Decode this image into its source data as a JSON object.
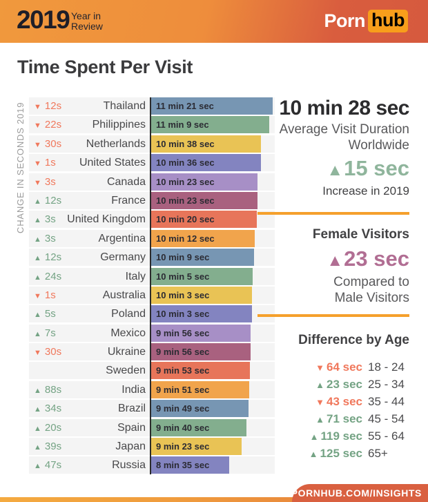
{
  "header": {
    "year": "2019",
    "subtitle_line1": "Year in",
    "subtitle_line2": "Review",
    "logo_left": "Porn",
    "logo_right": "hub"
  },
  "title": "Time Spent Per Visit",
  "chart_data": {
    "type": "bar",
    "orientation": "horizontal",
    "title": "Time Spent Per Visit",
    "axis_label": "CHANGE IN SECONDS 2019",
    "value_unit": "seconds per visit",
    "rows": [
      {
        "country": "Thailand",
        "change_arrow": "▼",
        "change_value": "12s",
        "change_dir": "down",
        "change_seconds": -12,
        "duration_label": "11 min 21 sec",
        "duration_seconds": 681,
        "bar_color": "#7796b3"
      },
      {
        "country": "Philippines",
        "change_arrow": "▼",
        "change_value": "22s",
        "change_dir": "down",
        "change_seconds": -22,
        "duration_label": "11 min 9 sec",
        "duration_seconds": 669,
        "bar_color": "#83ae8e"
      },
      {
        "country": "Netherlands",
        "change_arrow": "▼",
        "change_value": "30s",
        "change_dir": "down",
        "change_seconds": -30,
        "duration_label": "10 min 38 sec",
        "duration_seconds": 638,
        "bar_color": "#e9c355"
      },
      {
        "country": "United States",
        "change_arrow": "▼",
        "change_value": "1s",
        "change_dir": "down",
        "change_seconds": -1,
        "duration_label": "10 min 36 sec",
        "duration_seconds": 636,
        "bar_color": "#8384c0"
      },
      {
        "country": "Canada",
        "change_arrow": "▼",
        "change_value": "3s",
        "change_dir": "down",
        "change_seconds": -3,
        "duration_label": "10 min 23 sec",
        "duration_seconds": 623,
        "bar_color": "#a78fc6"
      },
      {
        "country": "France",
        "change_arrow": "▲",
        "change_value": "12s",
        "change_dir": "up",
        "change_seconds": 12,
        "duration_label": "10 min 23 sec",
        "duration_seconds": 623,
        "bar_color": "#a9617f"
      },
      {
        "country": "United Kingdom",
        "change_arrow": "▲",
        "change_value": "3s",
        "change_dir": "up",
        "change_seconds": 3,
        "duration_label": "10 min 20 sec",
        "duration_seconds": 620,
        "bar_color": "#e7755a"
      },
      {
        "country": "Argentina",
        "change_arrow": "▲",
        "change_value": "3s",
        "change_dir": "up",
        "change_seconds": 3,
        "duration_label": "10 min 12 sec",
        "duration_seconds": 612,
        "bar_color": "#f1a44c"
      },
      {
        "country": "Germany",
        "change_arrow": "▲",
        "change_value": "12s",
        "change_dir": "up",
        "change_seconds": 12,
        "duration_label": "10 min 9 sec",
        "duration_seconds": 609,
        "bar_color": "#7796b3"
      },
      {
        "country": "Italy",
        "change_arrow": "▲",
        "change_value": "24s",
        "change_dir": "up",
        "change_seconds": 24,
        "duration_label": "10 min 5 sec",
        "duration_seconds": 605,
        "bar_color": "#83ae8e"
      },
      {
        "country": "Australia",
        "change_arrow": "▼",
        "change_value": "1s",
        "change_dir": "down",
        "change_seconds": -1,
        "duration_label": "10 min 3 sec",
        "duration_seconds": 603,
        "bar_color": "#e9c355"
      },
      {
        "country": "Poland",
        "change_arrow": "▲",
        "change_value": "5s",
        "change_dir": "up",
        "change_seconds": 5,
        "duration_label": "10 min 3 sec",
        "duration_seconds": 603,
        "bar_color": "#8384c0"
      },
      {
        "country": "Mexico",
        "change_arrow": "▲",
        "change_value": "7s",
        "change_dir": "up",
        "change_seconds": 7,
        "duration_label": "9 min 56 sec",
        "duration_seconds": 596,
        "bar_color": "#a78fc6"
      },
      {
        "country": "Ukraine",
        "change_arrow": "▼",
        "change_value": "30s",
        "change_dir": "down",
        "change_seconds": -30,
        "duration_label": "9 min 56 sec",
        "duration_seconds": 596,
        "bar_color": "#a9617f"
      },
      {
        "country": "Sweden",
        "change_arrow": "",
        "change_value": "",
        "change_dir": "none",
        "change_seconds": 0,
        "duration_label": "9 min 53 sec",
        "duration_seconds": 593,
        "bar_color": "#e7755a"
      },
      {
        "country": "India",
        "change_arrow": "▲",
        "change_value": "88s",
        "change_dir": "up",
        "change_seconds": 88,
        "duration_label": "9 min 51 sec",
        "duration_seconds": 591,
        "bar_color": "#f1a44c"
      },
      {
        "country": "Brazil",
        "change_arrow": "▲",
        "change_value": "34s",
        "change_dir": "up",
        "change_seconds": 34,
        "duration_label": "9 min 49 sec",
        "duration_seconds": 589,
        "bar_color": "#7796b3"
      },
      {
        "country": "Spain",
        "change_arrow": "▲",
        "change_value": "20s",
        "change_dir": "up",
        "change_seconds": 20,
        "duration_label": "9 min 40 sec",
        "duration_seconds": 580,
        "bar_color": "#83ae8e"
      },
      {
        "country": "Japan",
        "change_arrow": "▲",
        "change_value": "39s",
        "change_dir": "up",
        "change_seconds": 39,
        "duration_label": "9 min 23 sec",
        "duration_seconds": 563,
        "bar_color": "#e9c355"
      },
      {
        "country": "Russia",
        "change_arrow": "▲",
        "change_value": "47s",
        "change_dir": "up",
        "change_seconds": 47,
        "duration_label": "8 min 35 sec",
        "duration_seconds": 515,
        "bar_color": "#8384c0"
      }
    ]
  },
  "panel": {
    "worldwide": {
      "value": "10 min 28 sec",
      "label_line1": "Average Visit Duration",
      "label_line2": "Worldwide",
      "stat_arrow": "▲",
      "stat_value": "15 sec",
      "stat_label": "Increase in 2019"
    },
    "female": {
      "heading": "Female Visitors",
      "stat_arrow": "▲",
      "stat_value": "23 sec",
      "label_line1": "Compared to",
      "label_line2": "Male Visitors"
    },
    "age": {
      "heading": "Difference by Age",
      "rows": [
        {
          "arrow": "▼",
          "value": "64 sec",
          "dir": "down",
          "label": "18 - 24"
        },
        {
          "arrow": "▲",
          "value": "23 sec",
          "dir": "up",
          "label": "25 - 34"
        },
        {
          "arrow": "▼",
          "value": "43 sec",
          "dir": "down",
          "label": "35 - 44"
        },
        {
          "arrow": "▲",
          "value": "71 sec",
          "dir": "up",
          "label": "45 - 54"
        },
        {
          "arrow": "▲",
          "value": "119 sec",
          "dir": "up",
          "label": "55 - 64"
        },
        {
          "arrow": "▲",
          "value": "125 sec",
          "dir": "up",
          "label": "65+"
        }
      ]
    }
  },
  "footer": {
    "label": "PORNHUB.COM/INSIGHTS"
  },
  "colors": {
    "accent_orange": "#f5a02c",
    "up_green": "#74a384",
    "down_red": "#f0785c",
    "stat_green": "#8fb59c",
    "stat_pink": "#b16e93",
    "footer_bar": "#d96040",
    "logo_badge": "#f89e1b",
    "axis_line": "#2b2b2b",
    "row_track": "#f4f4f4"
  }
}
